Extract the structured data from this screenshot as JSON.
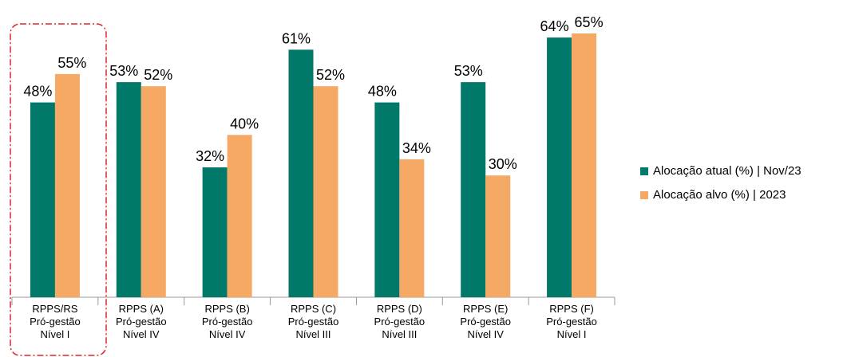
{
  "chart_data": {
    "type": "bar",
    "categories": [
      [
        "RPPS/RS",
        "Pró-gestão",
        "Nível I"
      ],
      [
        "RPPS (A)",
        "Pró-gestão",
        "Nível IV"
      ],
      [
        "RPPS (B)",
        "Pró-gestão",
        "Nível IV"
      ],
      [
        "RPPS (C)",
        "Pró-gestão",
        "Nível III"
      ],
      [
        "RPPS (D)",
        "Pró-gestão",
        "Nível III"
      ],
      [
        "RPPS (E)",
        "Pró-gestão",
        "Nível IV"
      ],
      [
        "RPPS (F)",
        "Pró-gestão",
        "Nível I"
      ]
    ],
    "series": [
      {
        "name": "Alocação atual (%) | Nov/23",
        "color": "#00796b",
        "values": [
          48,
          53,
          32,
          61,
          48,
          53,
          64
        ],
        "value_labels": [
          "48%",
          "53%",
          "32%",
          "61%",
          "48%",
          "53%",
          "64%"
        ]
      },
      {
        "name": "Alocação alvo (%) | 2023",
        "color": "#f5a964",
        "values": [
          55,
          52,
          40,
          52,
          34,
          30,
          65
        ],
        "value_labels": [
          "55%",
          "52%",
          "40%",
          "52%",
          "34%",
          "30%",
          "65%"
        ]
      }
    ],
    "legend": "right"
  }
}
